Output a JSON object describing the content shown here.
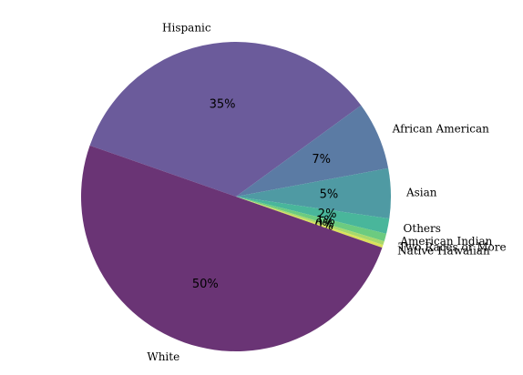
{
  "chart_data": {
    "type": "pie",
    "categories": [
      "Hispanic",
      "African American",
      "Asian",
      "Others",
      "American Indian",
      "Two Races or More",
      "Native Hawaiian",
      "White"
    ],
    "values": [
      34.6,
      7.1,
      5.2,
      1.6,
      0.8,
      0.4,
      0.3,
      50
    ],
    "value_labels": [
      "35%",
      "7%",
      "5%",
      "2%",
      "1%",
      "0%",
      "0%",
      "50%"
    ],
    "colors": [
      "#6b5b9b",
      "#5b7ba4",
      "#4f9aa3",
      "#49b69b",
      "#6ccb80",
      "#a8d86b",
      "#dbe15a",
      "#6a3475"
    ]
  }
}
